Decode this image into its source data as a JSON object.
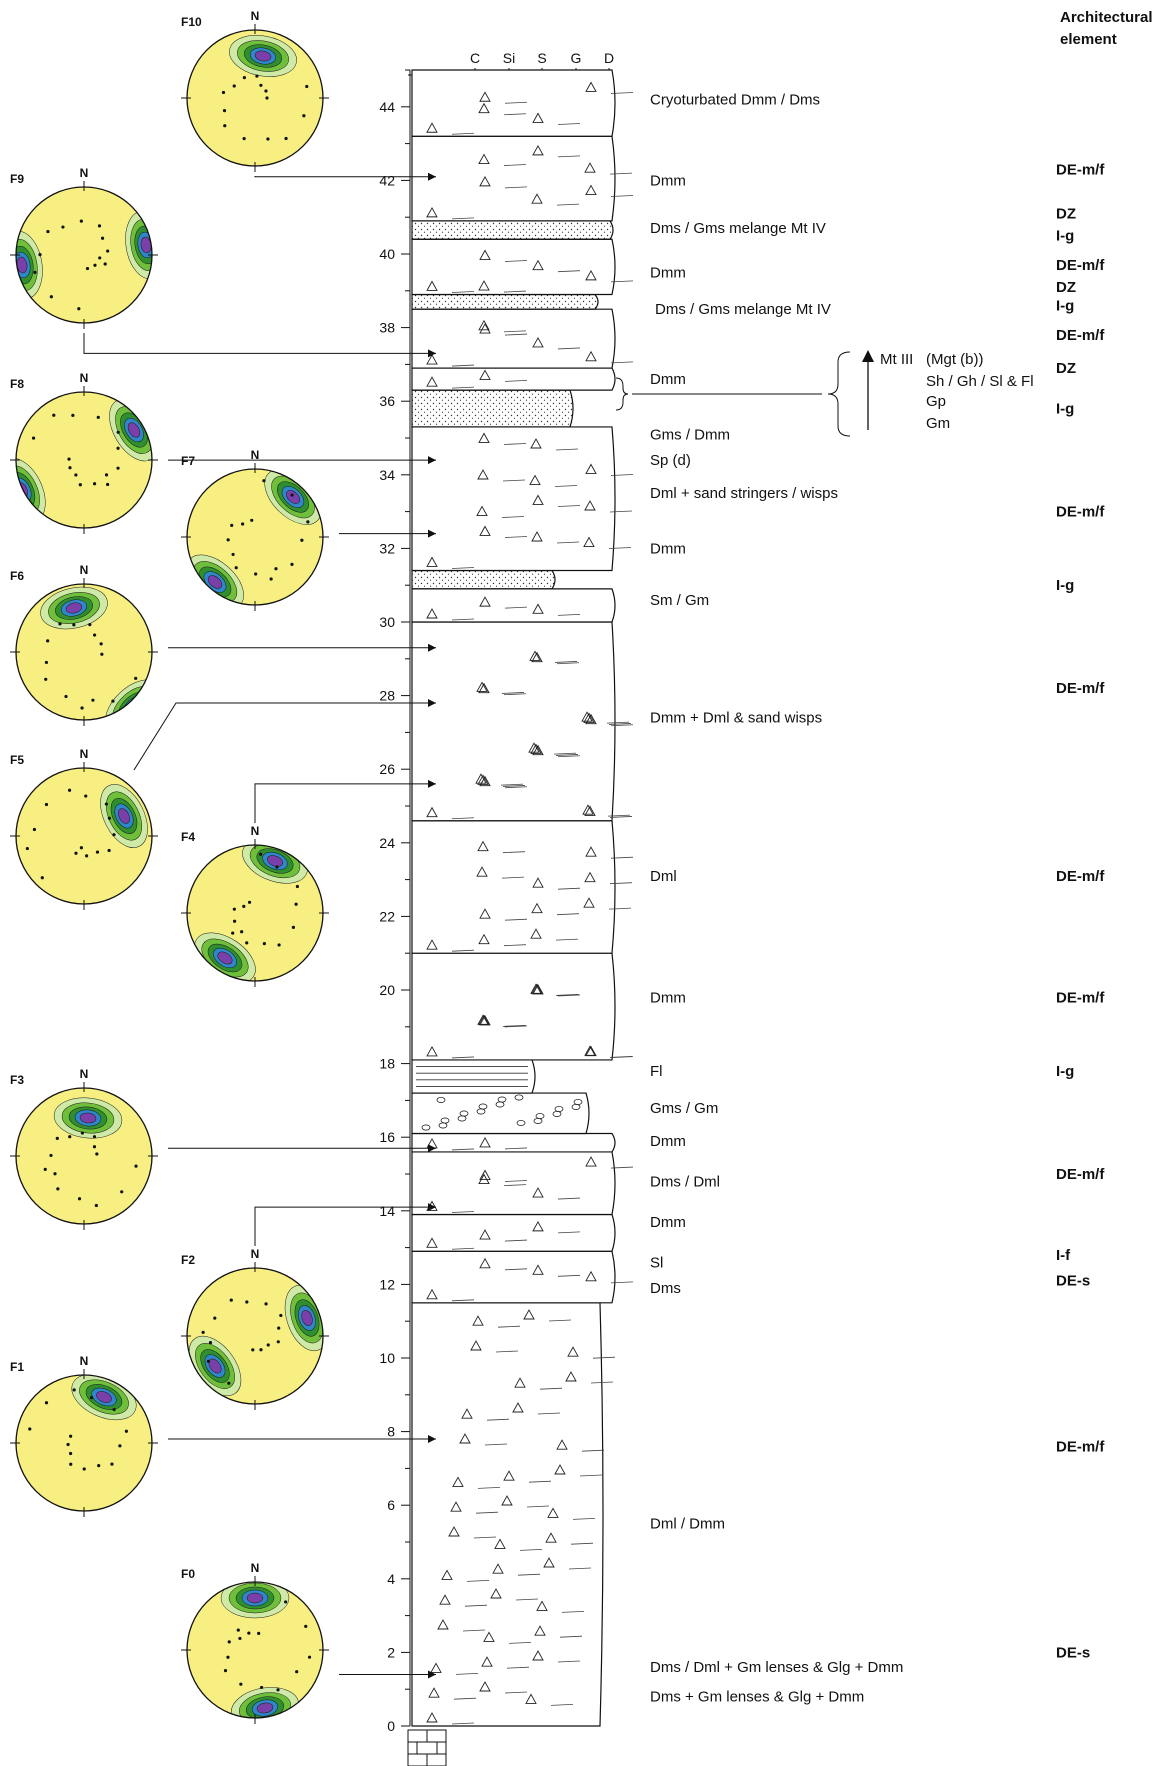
{
  "header": {
    "line1": "Architectural",
    "line2": "element"
  },
  "grain_size_labels": [
    "C",
    "Si",
    "S",
    "G",
    "D"
  ],
  "height_ticks": [
    "0",
    "2",
    "4",
    "6",
    "8",
    "10",
    "12",
    "14",
    "16",
    "18",
    "20",
    "22",
    "24",
    "26",
    "28",
    "30",
    "32",
    "34",
    "36",
    "38",
    "40",
    "42",
    "44"
  ],
  "facies": [
    {
      "label": "Cryoturbated Dmm / Dms",
      "h": 44.2
    },
    {
      "label": "Dmm",
      "h": 42
    },
    {
      "label": "Dms / Gms melange Mt IV",
      "h": 40.7
    },
    {
      "label": "Dmm",
      "h": 39.5
    },
    {
      "label": "Dms / Gms melange Mt IV",
      "h": 38.5,
      "indent": true
    },
    {
      "label": "Dmm",
      "h": 36.6
    },
    {
      "label": "Gms / Dmm",
      "h": 35.1
    },
    {
      "label": "Sp (d)",
      "h": 34.4
    },
    {
      "label": "Dml + sand stringers / wisps",
      "h": 33.5
    },
    {
      "label": "Dmm",
      "h": 32
    },
    {
      "label": "Sm / Gm",
      "h": 30.6
    },
    {
      "label": "Dmm + Dml & sand wisps",
      "h": 27.4
    },
    {
      "label": "Dml",
      "h": 23.1
    },
    {
      "label": "Dmm",
      "h": 19.8
    },
    {
      "label": "Fl",
      "h": 17.8
    },
    {
      "label": "Gms / Gm",
      "h": 16.8
    },
    {
      "label": "Dmm",
      "h": 15.9
    },
    {
      "label": "Dms / Dml",
      "h": 14.8
    },
    {
      "label": "Dmm",
      "h": 13.7
    },
    {
      "label": "Sl",
      "h": 12.6
    },
    {
      "label": "Dms",
      "h": 11.9
    },
    {
      "label": "Dml / Dmm",
      "h": 5.5
    },
    {
      "label": "Dms / Dml + Gm lenses & Glg + Dmm",
      "h": 1.6
    },
    {
      "label": "Dms + Gm lenses & Glg + Dmm",
      "h": 0.8
    }
  ],
  "elements": [
    {
      "label": "DE-m/f",
      "h": 42.3
    },
    {
      "label": "DZ",
      "h": 41.1
    },
    {
      "label": "I-g",
      "h": 40.5
    },
    {
      "label": "DE-m/f",
      "h": 39.7
    },
    {
      "label": "DZ",
      "h": 39.1
    },
    {
      "label": "I-g",
      "h": 38.6
    },
    {
      "label": "DE-m/f",
      "h": 37.8
    },
    {
      "label": "DZ",
      "h": 36.9
    },
    {
      "label": "I-g",
      "h": 35.8
    },
    {
      "label": "DE-m/f",
      "h": 33.0
    },
    {
      "label": "I-g",
      "h": 31.0
    },
    {
      "label": "DE-m/f",
      "h": 28.2
    },
    {
      "label": "DE-m/f",
      "h": 23.1
    },
    {
      "label": "DE-m/f",
      "h": 19.8
    },
    {
      "label": "I-g",
      "h": 17.8
    },
    {
      "label": "DE-m/f",
      "h": 15.0
    },
    {
      "label": "I-f",
      "h": 12.8
    },
    {
      "label": "DE-s",
      "h": 12.1
    },
    {
      "label": "DE-m/f",
      "h": 7.6
    },
    {
      "label": "DE-s",
      "h": 2.0
    }
  ],
  "mt3_annotation": {
    "title": "Mt III",
    "lines": [
      "(Mgt (b))",
      "Sh / Gh / Sl & Fl",
      "Gp",
      "Gm"
    ]
  },
  "stereonets": [
    {
      "id": "F10",
      "north": "N"
    },
    {
      "id": "F9",
      "north": "N"
    },
    {
      "id": "F8",
      "north": "N"
    },
    {
      "id": "F7",
      "north": "N"
    },
    {
      "id": "F6",
      "north": "N"
    },
    {
      "id": "F5",
      "north": "N"
    },
    {
      "id": "F4",
      "north": "N"
    },
    {
      "id": "F3",
      "north": "N"
    },
    {
      "id": "F2",
      "north": "N"
    },
    {
      "id": "F1",
      "north": "N"
    },
    {
      "id": "F0",
      "north": "N"
    }
  ],
  "colors": {
    "stereonet_fill": "#f7ef82",
    "contour_light": "#cfe9a6",
    "contour_green": "#6fbf3a",
    "contour_dark_green": "#2f8f2f",
    "contour_blue": "#2f86c8",
    "contour_purple": "#7a3fa8"
  }
}
